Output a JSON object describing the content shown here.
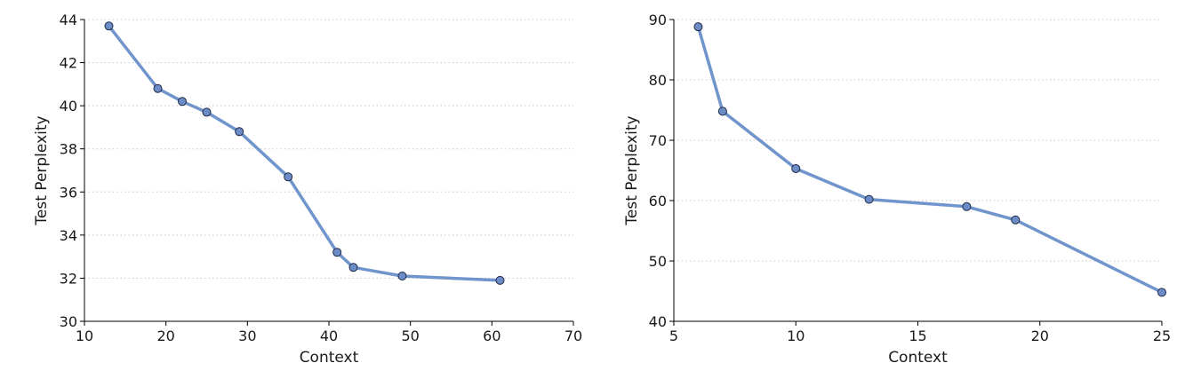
{
  "chart_data": [
    {
      "type": "line",
      "xlabel": "Context",
      "ylabel": "Test Perplexity",
      "xlim": [
        10,
        70
      ],
      "ylim": [
        30,
        44
      ],
      "xticks": [
        10,
        20,
        30,
        40,
        50,
        60,
        70
      ],
      "yticks": [
        30,
        32,
        34,
        36,
        38,
        40,
        42,
        44
      ],
      "grid": "horizontal",
      "line_color": "#7094cc",
      "marker_color": "#6b8cc6",
      "series": [
        {
          "x": [
            13,
            19,
            22,
            25,
            29,
            35,
            41,
            43,
            49,
            61
          ],
          "y": [
            43.7,
            40.8,
            40.2,
            39.7,
            38.8,
            36.7,
            33.2,
            32.5,
            32.1,
            31.9
          ]
        }
      ]
    },
    {
      "type": "line",
      "xlabel": "Context",
      "ylabel": "Test Perplexity",
      "xlim": [
        5,
        25
      ],
      "ylim": [
        40,
        90
      ],
      "xticks": [
        5,
        10,
        15,
        20,
        25
      ],
      "yticks": [
        40,
        50,
        60,
        70,
        80,
        90
      ],
      "grid": "horizontal",
      "line_color": "#7094cc",
      "marker_color": "#6b8cc6",
      "series": [
        {
          "x": [
            6,
            7,
            10,
            13,
            17,
            19,
            25
          ],
          "y": [
            88.8,
            74.8,
            65.3,
            60.2,
            59.0,
            56.8,
            44.8
          ]
        }
      ]
    }
  ]
}
